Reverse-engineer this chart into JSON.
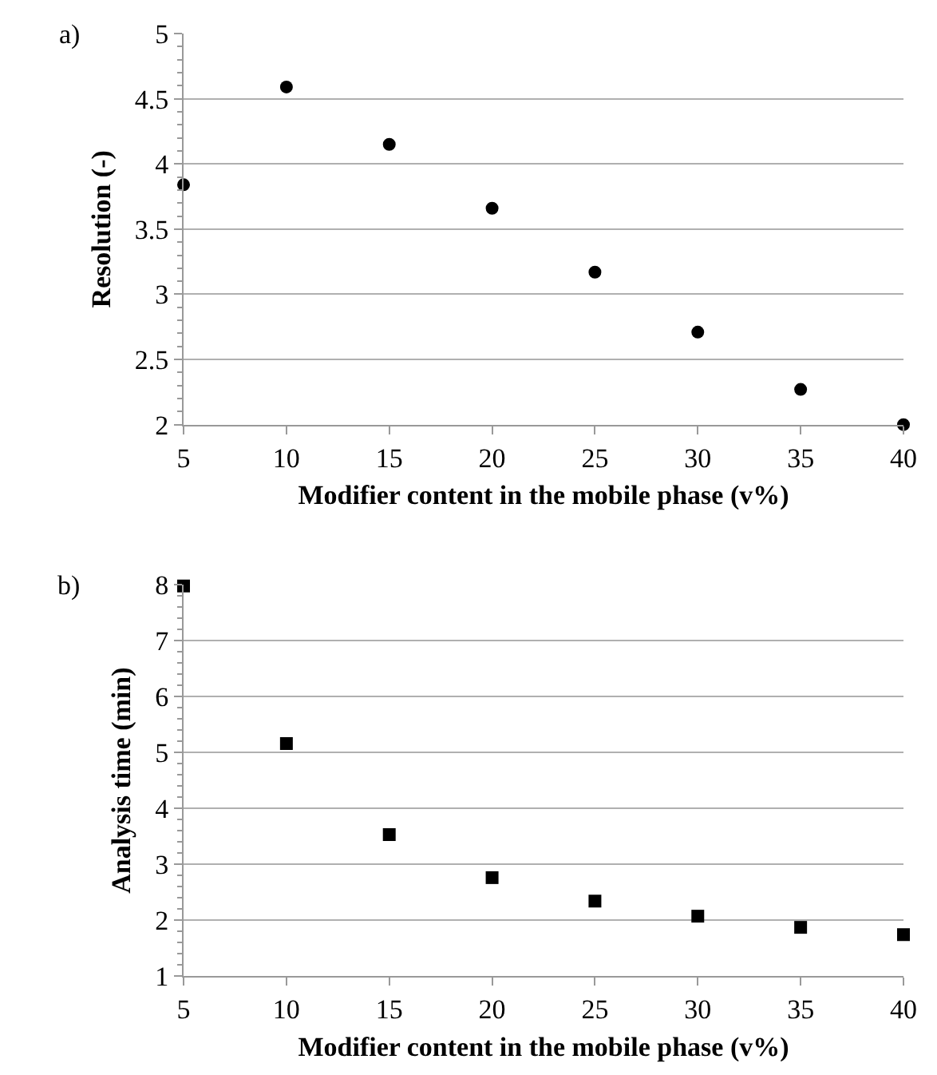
{
  "chart_data": [
    {
      "type": "scatter",
      "annotations": [
        "a)"
      ],
      "xlabel": "Modifier content in the mobile phase (v%)",
      "ylabel": "Resolution (-)",
      "x": [
        5,
        10,
        15,
        20,
        25,
        30,
        35,
        40
      ],
      "marker": "circle",
      "grid": "y",
      "xlim": [
        5,
        40
      ],
      "xticks": [
        5,
        10,
        15,
        20,
        25,
        30,
        35,
        40
      ],
      "ylim": [
        2,
        5
      ],
      "yticks": [
        2,
        {
          "value": 2.5,
          "label": "2.5"
        },
        3,
        {
          "value": 3.5,
          "label": "3.5"
        },
        4,
        {
          "value": 4.5,
          "label": "4.5"
        },
        5
      ],
      "series": [
        {
          "color": "#000000",
          "values": [
            3.84,
            4.59,
            4.15,
            3.66,
            3.17,
            2.71,
            2.27,
            2.0
          ]
        }
      ]
    },
    {
      "type": "scatter",
      "annotations": [
        "b)"
      ],
      "xlabel": "Modifier content in the mobile phase (v%)",
      "ylabel": "Analysis time (min)",
      "x": [
        5,
        10,
        15,
        20,
        25,
        30,
        35,
        40
      ],
      "marker": "square",
      "grid": "y",
      "xlim": [
        5,
        40
      ],
      "xticks": [
        5,
        10,
        15,
        20,
        25,
        30,
        35,
        40
      ],
      "ylim": [
        1,
        8
      ],
      "yticks": [
        1,
        2,
        3,
        4,
        5,
        6,
        7,
        8
      ],
      "series": [
        {
          "color": "#000000",
          "values": [
            7.98,
            5.16,
            3.53,
            2.76,
            2.34,
            2.07,
            1.87,
            1.74
          ]
        }
      ]
    }
  ]
}
